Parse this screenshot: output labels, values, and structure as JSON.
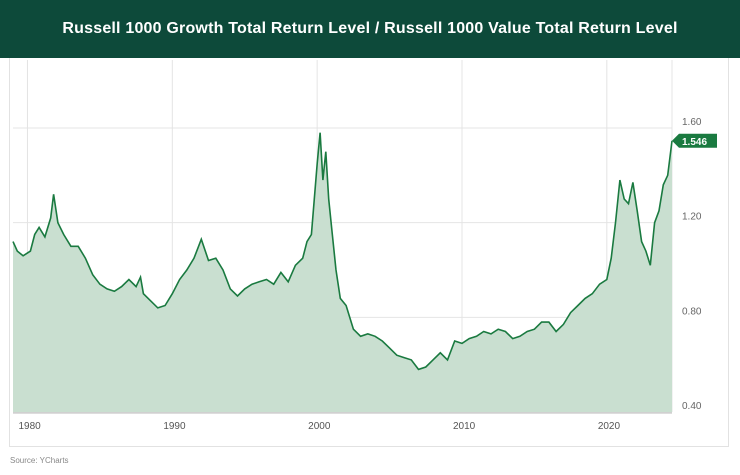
{
  "header": {
    "title": "Russell 1000 Growth Total Return Level / Russell 1000 Value Total Return Level"
  },
  "source": "Source: YCharts",
  "colors": {
    "header": "#0d4a3a",
    "line": "#1a7a40",
    "fill": "#c9dfd0"
  },
  "chart_data": {
    "type": "area",
    "title": "Russell 1000 Growth Total Return Level / Russell 1000 Value Total Return Level",
    "xlabel": "",
    "ylabel": "",
    "xlim": [
      1979.0,
      2024.5
    ],
    "ylim": [
      0.4,
      1.8
    ],
    "x_ticks": [
      "1980",
      "1990",
      "2000",
      "2010",
      "2020"
    ],
    "y_ticks": [
      "0.40",
      "0.80",
      "1.20",
      "1.60"
    ],
    "grid": true,
    "last_value_label": "1.546",
    "x": [
      1979.0,
      1979.3,
      1979.7,
      1980.2,
      1980.5,
      1980.8,
      1981.2,
      1981.6,
      1981.8,
      1982.1,
      1982.5,
      1983,
      1983.5,
      1984,
      1984.5,
      1985,
      1985.5,
      1986,
      1986.5,
      1987,
      1987.5,
      1987.8,
      1988,
      1988.5,
      1989,
      1989.5,
      1990,
      1990.5,
      1991,
      1991.5,
      1992,
      1992.5,
      1993,
      1993.5,
      1994,
      1994.5,
      1995,
      1995.5,
      1996,
      1996.5,
      1997,
      1997.5,
      1998,
      1998.5,
      1999,
      1999.3,
      1999.6,
      2000.0,
      2000.2,
      2000.4,
      2000.6,
      2000.8,
      2001,
      2001.3,
      2001.6,
      2002,
      2002.5,
      2003,
      2003.5,
      2004,
      2004.5,
      2005,
      2005.5,
      2006,
      2006.5,
      2007,
      2007.5,
      2008,
      2008.5,
      2009,
      2009.5,
      2010,
      2010.5,
      2011,
      2011.5,
      2012,
      2012.5,
      2013,
      2013.5,
      2014,
      2014.5,
      2015,
      2015.5,
      2016,
      2016.5,
      2017,
      2017.5,
      2018,
      2018.5,
      2019,
      2019.5,
      2020,
      2020.3,
      2020.6,
      2020.9,
      2021.2,
      2021.5,
      2021.8,
      2022.1,
      2022.4,
      2022.7,
      2023,
      2023.3,
      2023.6,
      2023.9,
      2024.2,
      2024.5
    ],
    "values": [
      1.12,
      1.08,
      1.06,
      1.08,
      1.15,
      1.18,
      1.14,
      1.22,
      1.32,
      1.2,
      1.15,
      1.1,
      1.1,
      1.05,
      0.98,
      0.94,
      0.92,
      0.91,
      0.93,
      0.96,
      0.93,
      0.97,
      0.9,
      0.87,
      0.84,
      0.85,
      0.9,
      0.96,
      1.0,
      1.05,
      1.13,
      1.04,
      1.05,
      1.0,
      0.92,
      0.89,
      0.92,
      0.94,
      0.95,
      0.96,
      0.94,
      0.99,
      0.95,
      1.02,
      1.05,
      1.12,
      1.15,
      1.45,
      1.58,
      1.38,
      1.5,
      1.3,
      1.18,
      1.0,
      0.88,
      0.85,
      0.75,
      0.72,
      0.73,
      0.72,
      0.7,
      0.67,
      0.64,
      0.63,
      0.62,
      0.58,
      0.59,
      0.62,
      0.65,
      0.62,
      0.7,
      0.69,
      0.71,
      0.72,
      0.74,
      0.73,
      0.75,
      0.74,
      0.71,
      0.72,
      0.74,
      0.75,
      0.78,
      0.78,
      0.74,
      0.77,
      0.82,
      0.85,
      0.88,
      0.9,
      0.94,
      0.96,
      1.05,
      1.2,
      1.38,
      1.3,
      1.28,
      1.37,
      1.25,
      1.12,
      1.08,
      1.02,
      1.2,
      1.25,
      1.36,
      1.4,
      1.546
    ]
  }
}
